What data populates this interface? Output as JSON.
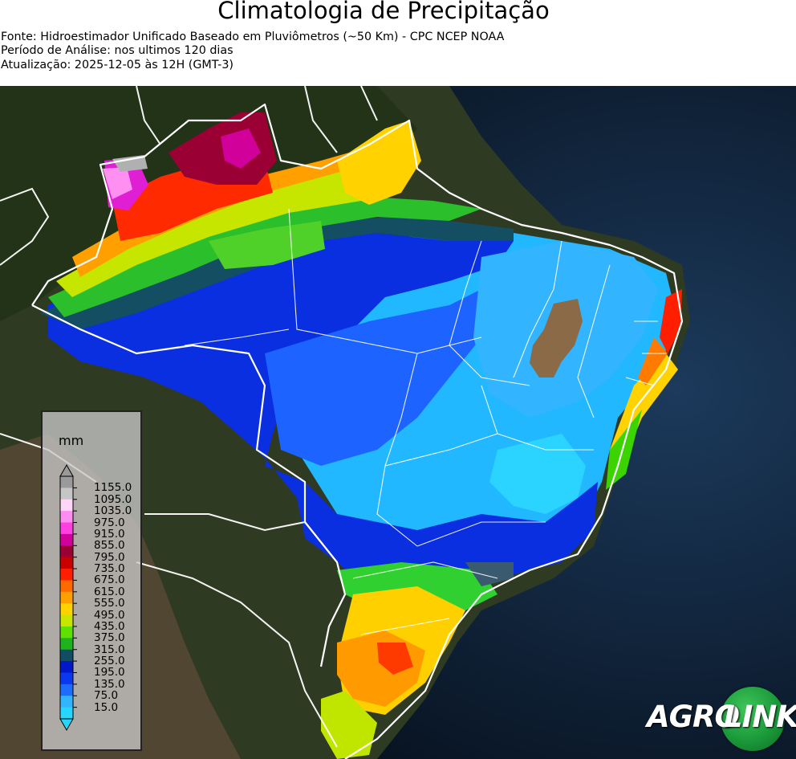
{
  "header": {
    "title": "Climatologia de Precipitação",
    "source": "Fonte: Hidroestimador Unificado Baseado em Pluviômetros (~50 Km) - CPC NCEP NOAA",
    "period": "Período de Análise: nos ultimos 120 dias",
    "updated": "Atualização: 2025-12-05 às 12H (GMT-3)"
  },
  "legend": {
    "unit": "mm",
    "ticks": [
      "1155.0",
      "1095.0",
      "1035.0",
      "975.0",
      "915.0",
      "855.0",
      "795.0",
      "735.0",
      "675.0",
      "615.0",
      "555.0",
      "495.0",
      "435.0",
      "375.0",
      "315.0",
      "255.0",
      "195.0",
      "135.0",
      "75.0",
      "15.0"
    ],
    "colors": [
      "#9a9a9a",
      "#c6c6c6",
      "#ffd6f7",
      "#ff8cf0",
      "#ff3fe0",
      "#d1009a",
      "#9a0033",
      "#c80000",
      "#ff1e00",
      "#ff6a00",
      "#ff9f00",
      "#ffd200",
      "#c8e600",
      "#5ee100",
      "#1eb21e",
      "#124d63",
      "#0018c8",
      "#0a38f0",
      "#1d6bff",
      "#33b4ff",
      "#26d6ff"
    ]
  },
  "logo": {
    "part1": "AGRO",
    "part2": "LINK",
    "accent": "#1b9a3a"
  },
  "palette": {
    "ocean": "#0b1a2c",
    "borders": "#ffffff"
  }
}
